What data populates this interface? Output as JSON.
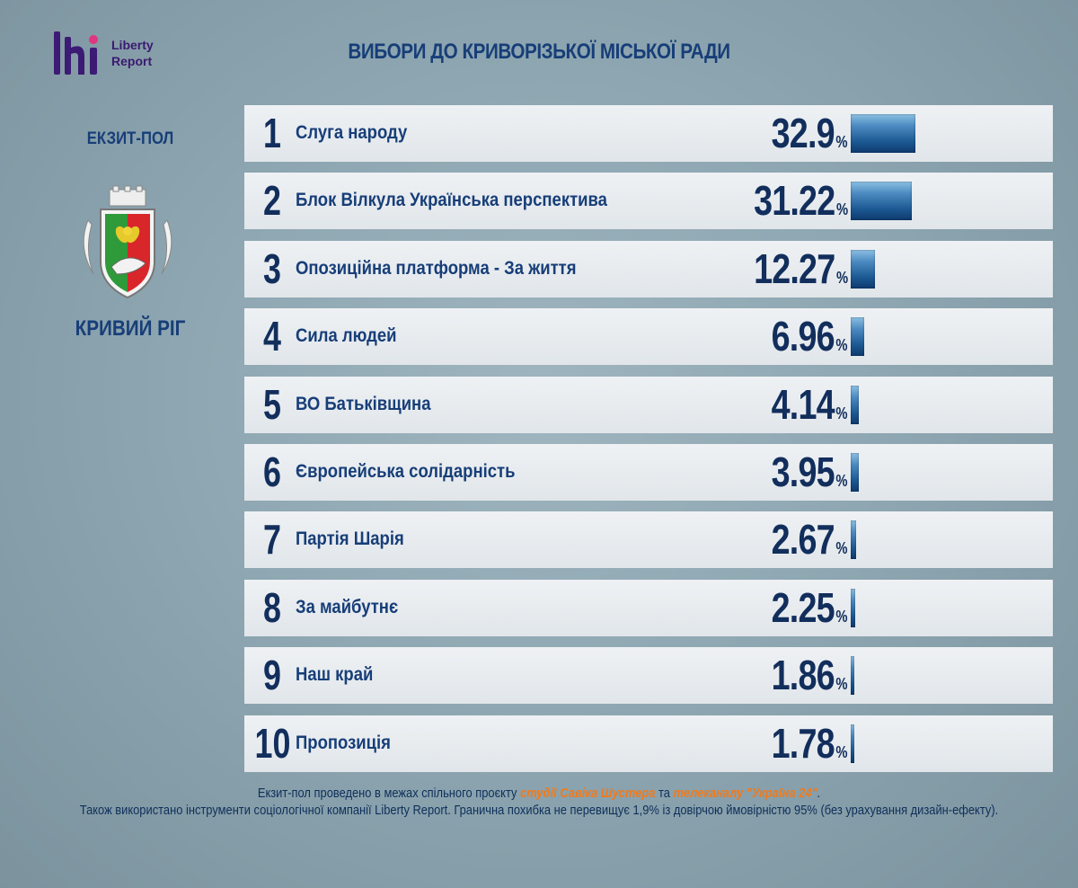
{
  "brand": {
    "logo_line1": "Liberty",
    "logo_line2": "Report",
    "logo_colors": [
      "#3b1b74",
      "#e0357f"
    ]
  },
  "title": "ВИБОРИ ДО КРИВОРІЗЬКОЇ МІСЬКОЇ РАДИ",
  "sidebar": {
    "subtitle": "ЕКЗИТ-ПОЛ",
    "emblem": "kryvyi-rih-coat-of-arms",
    "city": "КРИВИЙ РІГ"
  },
  "chart_data": {
    "type": "bar",
    "orientation": "horizontal",
    "unit": "%",
    "ranks": [
      "1",
      "2",
      "3",
      "4",
      "5",
      "6",
      "7",
      "8",
      "9",
      "10"
    ],
    "categories": [
      "Слуга народу",
      "Блок Вілкула Українська перспектива",
      "Опозиційна платформа - За життя",
      "Сила людей",
      "ВО Батьківщина",
      "Європейська солідарність",
      "Партія Шарія",
      "За майбутнє",
      "Наш край",
      "Пропозиція"
    ],
    "values": [
      32.9,
      31.22,
      12.27,
      6.96,
      4.14,
      3.95,
      2.67,
      2.25,
      1.86,
      1.78
    ],
    "value_labels": [
      "32.9",
      "31.22",
      "12.27",
      "6.96",
      "4.14",
      "3.95",
      "2.67",
      "2.25",
      "1.86",
      "1.78"
    ],
    "bar_color": "#1d5a94",
    "row_color": "#e6eaee",
    "text_color": "#173e78"
  },
  "footer": {
    "line1_pre": "Екзит-пол проведено в межах спільного проєкту ",
    "line1_hl1": "студії Савіка Шустера",
    "line1_mid": " та ",
    "line1_hl2": "телеканалу \"Україна 24\"",
    "line1_post": ".",
    "line2": "Також використано інструменти соціологічної компанії Liberty Report. Гранична похибка не перевищує 1,9% із довірчою ймовірністю 95% (без урахування дизайн-ефекту).",
    "highlight_color": "#f07a1c"
  }
}
